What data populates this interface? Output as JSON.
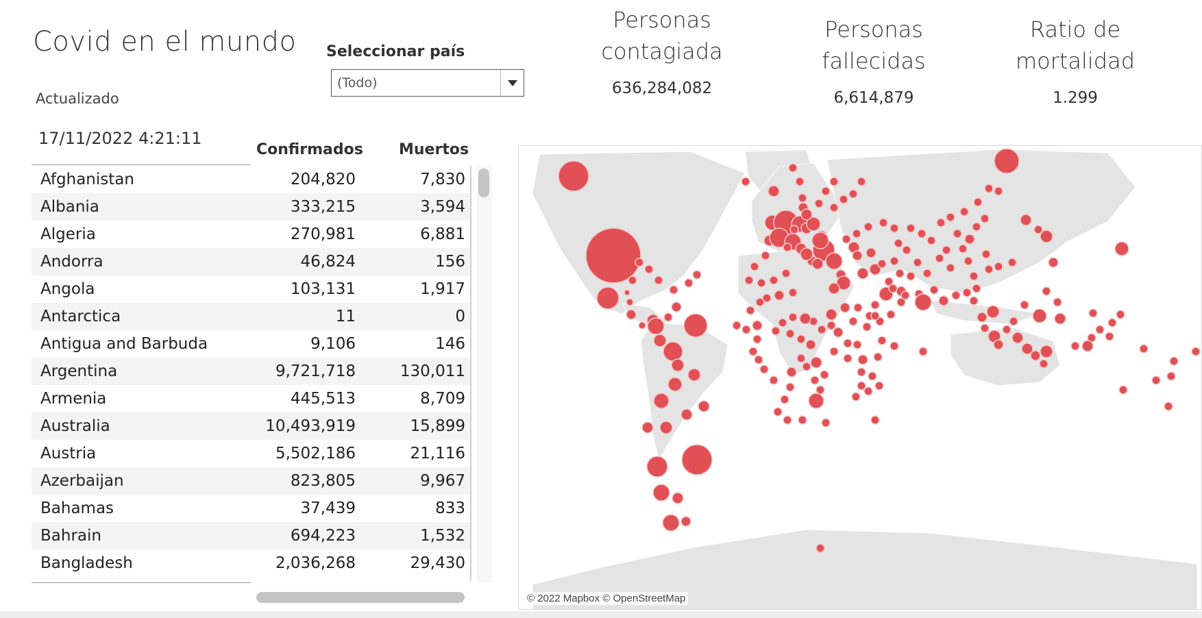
{
  "dashboard": {
    "title": "Covid en el mundo",
    "updated_label": "Actualizado",
    "updated_value": "17/11/2022 4:21:11"
  },
  "selector": {
    "label": "Seleccionar país",
    "value": "(Todo)"
  },
  "kpis": {
    "infected": {
      "title": "Personas contagiada",
      "value": "636,284,082"
    },
    "deaths": {
      "title": "Personas fallecidas",
      "value": "6,614,879"
    },
    "ratio": {
      "title": "Ratio de mortalidad",
      "value": "1.299"
    }
  },
  "table": {
    "columns": {
      "confirmed": "Confirmados",
      "deaths": "Muertos"
    },
    "rows": [
      {
        "country": "Afghanistan",
        "confirmed": "204,820",
        "deaths": "7,830"
      },
      {
        "country": "Albania",
        "confirmed": "333,215",
        "deaths": "3,594"
      },
      {
        "country": "Algeria",
        "confirmed": "270,981",
        "deaths": "6,881"
      },
      {
        "country": "Andorra",
        "confirmed": "46,824",
        "deaths": "156"
      },
      {
        "country": "Angola",
        "confirmed": "103,131",
        "deaths": "1,917"
      },
      {
        "country": "Antarctica",
        "confirmed": "11",
        "deaths": "0"
      },
      {
        "country": "Antigua and Barbuda",
        "confirmed": "9,106",
        "deaths": "146"
      },
      {
        "country": "Argentina",
        "confirmed": "9,721,718",
        "deaths": "130,011"
      },
      {
        "country": "Armenia",
        "confirmed": "445,513",
        "deaths": "8,709"
      },
      {
        "country": "Australia",
        "confirmed": "10,493,919",
        "deaths": "15,899"
      },
      {
        "country": "Austria",
        "confirmed": "5,502,186",
        "deaths": "21,116"
      },
      {
        "country": "Azerbaijan",
        "confirmed": "823,805",
        "deaths": "9,967"
      },
      {
        "country": "Bahamas",
        "confirmed": "37,439",
        "deaths": "833"
      },
      {
        "country": "Bahrain",
        "confirmed": "694,223",
        "deaths": "1,532"
      },
      {
        "country": "Bangladesh",
        "confirmed": "2,036,268",
        "deaths": "29,430"
      }
    ]
  },
  "map": {
    "attribution": "© 2022 Mapbox © OpenStreetMap",
    "marker_color": "#e05055",
    "land_color": "#e4e4e4",
    "marker_stroke": "#f6c9ca"
  }
}
